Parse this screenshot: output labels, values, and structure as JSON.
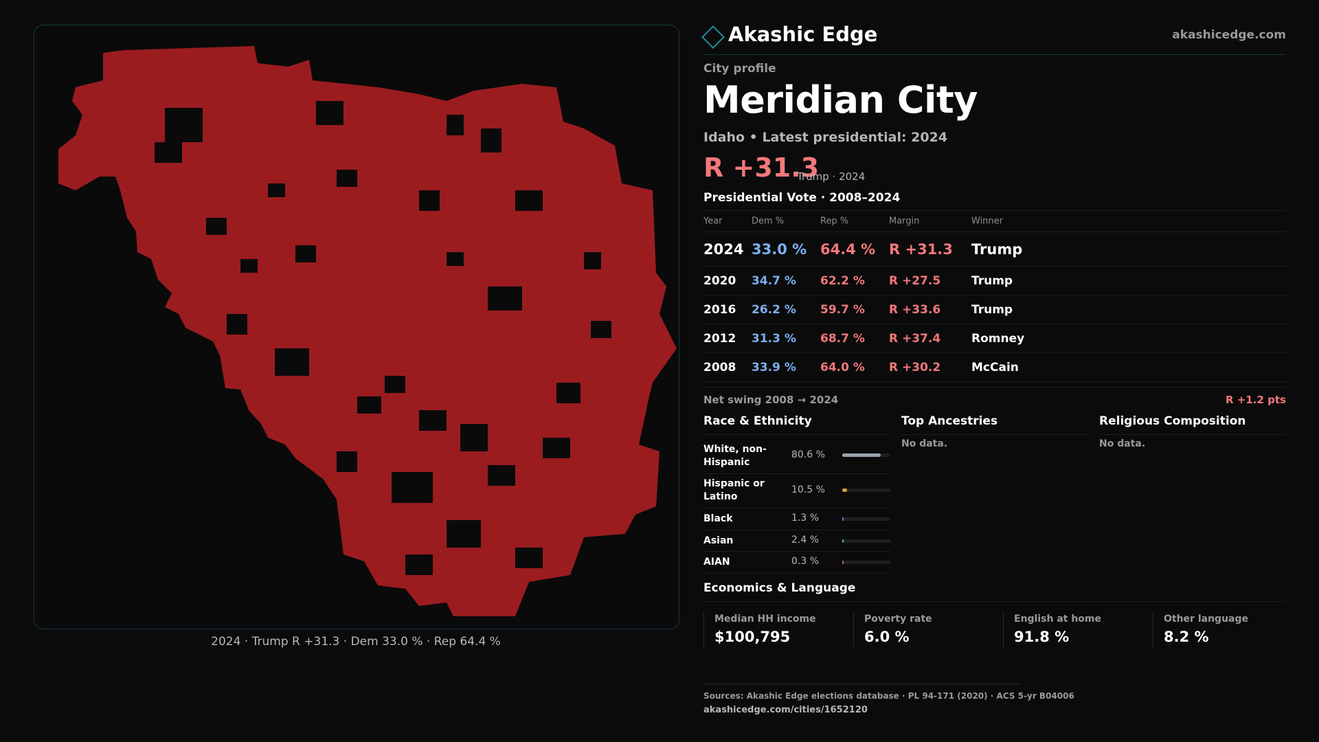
{
  "map": {
    "caption": "2024 · Trump R +31.3 · Dem 33.0 % · Rep 64.4 %",
    "fill_color": "#9b1c1f"
  },
  "header": {
    "brand_name": "Akashic Edge",
    "brand_url": "akashicedge.com",
    "logo_icon": "diamond-icon",
    "accent_color": "#1f8e99"
  },
  "profile": {
    "kicker": "City profile",
    "title": "Meridian City",
    "subtitle": "Idaho • Latest presidential: 2024",
    "headline_margin": "R +31.3",
    "headline_sub": "Trump · 2024"
  },
  "presidential": {
    "title": "Presidential Vote · 2008–2024",
    "columns": [
      "Year",
      "Dem %",
      "Rep %",
      "Margin",
      "Winner"
    ],
    "rows": [
      {
        "year": "2024",
        "dem": "33.0 %",
        "rep": "64.4 %",
        "margin": "R +31.3",
        "winner": "Trump"
      },
      {
        "year": "2020",
        "dem": "34.7 %",
        "rep": "62.2 %",
        "margin": "R +27.5",
        "winner": "Trump"
      },
      {
        "year": "2016",
        "dem": "26.2 %",
        "rep": "59.7 %",
        "margin": "R +33.6",
        "winner": "Trump"
      },
      {
        "year": "2012",
        "dem": "31.3 %",
        "rep": "68.7 %",
        "margin": "R +37.4",
        "winner": "Romney"
      },
      {
        "year": "2008",
        "dem": "33.9 %",
        "rep": "64.0 %",
        "margin": "R +30.2",
        "winner": "McCain"
      }
    ],
    "swing_label": "Net swing 2008 → 2024",
    "swing_value": "R +1.2 pts",
    "dem_color": "#7bb0f0",
    "rep_color": "#f2787b"
  },
  "race": {
    "title": "Race & Ethnicity",
    "rows": [
      {
        "label": "White, non-Hispanic",
        "value": "80.6 %",
        "share": 0.806,
        "color": "#9aa3b2"
      },
      {
        "label": "Hispanic or Latino",
        "value": "10.5 %",
        "share": 0.105,
        "color": "#e0a030"
      },
      {
        "label": "Black",
        "value": "1.3 %",
        "share": 0.013,
        "color": "#8a6bd0"
      },
      {
        "label": "Asian",
        "value": "2.4 %",
        "share": 0.024,
        "color": "#3fbf9a"
      },
      {
        "label": "AIAN",
        "value": "0.3 %",
        "share": 0.003,
        "color": "#c06a4a"
      }
    ]
  },
  "ancestries": {
    "title": "Top Ancestries",
    "empty": "No data."
  },
  "religion": {
    "title": "Religious Composition",
    "empty": "No data."
  },
  "economics": {
    "title": "Economics & Language",
    "cells": [
      {
        "label": "Median HH income",
        "value": "$100,795"
      },
      {
        "label": "Poverty rate",
        "value": "6.0 %"
      },
      {
        "label": "English at home",
        "value": "91.8 %"
      },
      {
        "label": "Other language",
        "value": "8.2 %"
      }
    ]
  },
  "sources": {
    "line": "Sources: Akashic Edge elections database · PL 94-171 (2020) · ACS 5-yr B04006",
    "url": "akashicedge.com/cities/1652120"
  }
}
